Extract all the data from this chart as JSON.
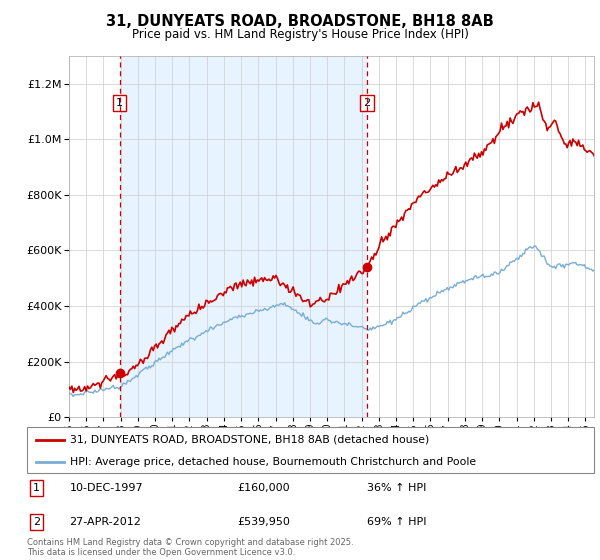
{
  "title_line1": "31, DUNYEATS ROAD, BROADSTONE, BH18 8AB",
  "title_line2": "Price paid vs. HM Land Registry's House Price Index (HPI)",
  "legend_label1": "31, DUNYEATS ROAD, BROADSTONE, BH18 8AB (detached house)",
  "legend_label2": "HPI: Average price, detached house, Bournemouth Christchurch and Poole",
  "sale1_label": "1",
  "sale1_date": "10-DEC-1997",
  "sale1_price": "£160,000",
  "sale1_hpi": "36% ↑ HPI",
  "sale1_year": 1997.94,
  "sale1_value": 160000,
  "sale2_label": "2",
  "sale2_date": "27-APR-2012",
  "sale2_price": "£539,950",
  "sale2_hpi": "69% ↑ HPI",
  "sale2_year": 2012.32,
  "sale2_value": 539950,
  "price_color": "#cc0000",
  "hpi_color": "#7aadd4",
  "dashed_color": "#cc0000",
  "shade_color": "#ddeeff",
  "ylim_min": 0,
  "ylim_max": 1300000,
  "xmin": 1995,
  "xmax": 2025.5,
  "footer": "Contains HM Land Registry data © Crown copyright and database right 2025.\nThis data is licensed under the Open Government Licence v3.0."
}
